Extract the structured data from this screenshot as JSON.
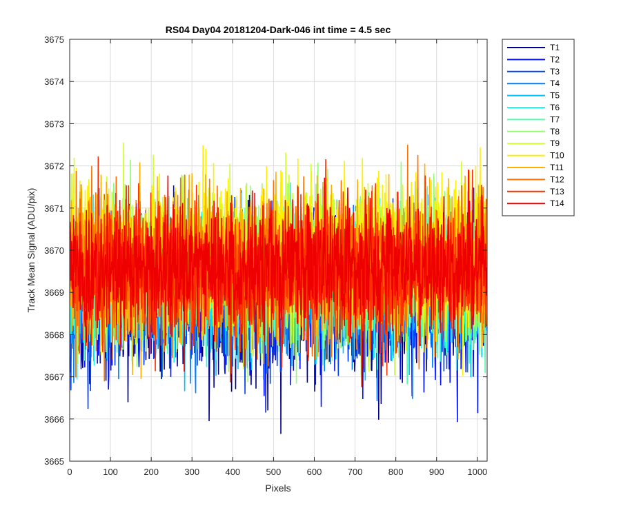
{
  "chart_data": {
    "type": "line",
    "title": "RS04 Day04 20181204-Dark-046 int time = 4.5 sec",
    "xlabel": "Pixels",
    "ylabel": "Track Mean Signal (ADU/pix)",
    "xlim": [
      0,
      1024
    ],
    "ylim": [
      3665,
      3675
    ],
    "xticks": [
      0,
      100,
      200,
      300,
      400,
      500,
      600,
      700,
      800,
      900,
      1000
    ],
    "yticks": [
      3665,
      3666,
      3667,
      3668,
      3669,
      3670,
      3671,
      3672,
      3673,
      3674,
      3675
    ],
    "grid": true,
    "legend_position": "outside-top-right",
    "n_points": 1024,
    "series": [
      {
        "name": "T1",
        "color": "#00008f",
        "mean": 3668.8,
        "spread": 0.85
      },
      {
        "name": "T2",
        "color": "#0010ff",
        "mean": 3668.9,
        "spread": 0.85
      },
      {
        "name": "T3",
        "color": "#0040ff",
        "mean": 3669.0,
        "spread": 0.8
      },
      {
        "name": "T4",
        "color": "#0080ff",
        "mean": 3669.1,
        "spread": 0.8
      },
      {
        "name": "T5",
        "color": "#00c0ff",
        "mean": 3669.2,
        "spread": 0.8
      },
      {
        "name": "T6",
        "color": "#10ffef",
        "mean": 3669.3,
        "spread": 0.8
      },
      {
        "name": "T7",
        "color": "#50ffaf",
        "mean": 3669.4,
        "spread": 0.8
      },
      {
        "name": "T8",
        "color": "#90ff6f",
        "mean": 3669.5,
        "spread": 0.85
      },
      {
        "name": "T9",
        "color": "#cfff30",
        "mean": 3669.8,
        "spread": 0.9
      },
      {
        "name": "T10",
        "color": "#ffef00",
        "mean": 3669.9,
        "spread": 0.9
      },
      {
        "name": "T11",
        "color": "#ffb000",
        "mean": 3669.7,
        "spread": 0.85
      },
      {
        "name": "T12",
        "color": "#ff7000",
        "mean": 3669.6,
        "spread": 0.85
      },
      {
        "name": "T13",
        "color": "#ff3000",
        "mean": 3669.5,
        "spread": 0.8
      },
      {
        "name": "T14",
        "color": "#ef0000",
        "mean": 3669.6,
        "spread": 0.75
      }
    ]
  }
}
